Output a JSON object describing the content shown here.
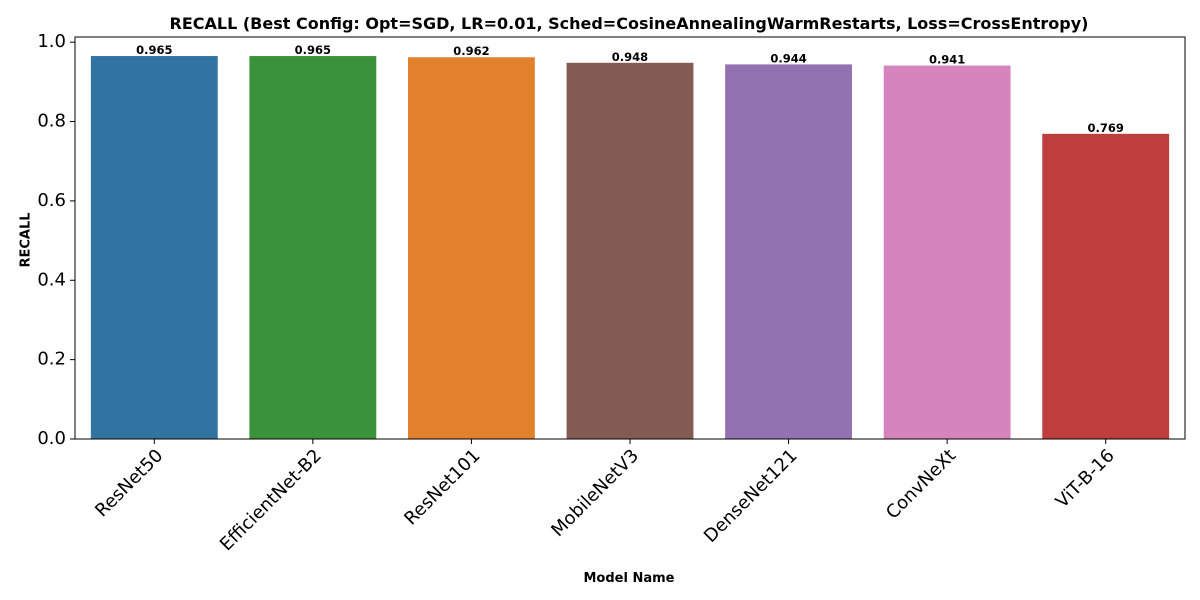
{
  "chart_data": {
    "type": "bar",
    "title": "RECALL (Best Config: Opt=SGD, LR=0.01, Sched=CosineAnnealingWarmRestarts, Loss=CrossEntropy)",
    "xlabel": "Model Name",
    "ylabel": "RECALL",
    "categories": [
      "ResNet50",
      "EfficientNet-B2",
      "ResNet101",
      "MobileNetV3",
      "DenseNet121",
      "ConvNeXt",
      "ViT-B-16"
    ],
    "values": [
      0.965,
      0.965,
      0.962,
      0.948,
      0.944,
      0.941,
      0.769
    ],
    "value_labels": [
      "0.965",
      "0.965",
      "0.962",
      "0.948",
      "0.944",
      "0.941",
      "0.769"
    ],
    "colors": [
      "#3274a1",
      "#3a923a",
      "#e1812c",
      "#845b53",
      "#9372b2",
      "#d684bd",
      "#c03d3e"
    ],
    "ylim": [
      0,
      1.013
    ],
    "yticks": [
      0.0,
      0.2,
      0.4,
      0.6,
      0.8,
      1.0
    ],
    "ytick_labels": [
      "0.0",
      "0.2",
      "0.4",
      "0.6",
      "0.8",
      "1.0"
    ],
    "grid": false,
    "legend": "none"
  }
}
